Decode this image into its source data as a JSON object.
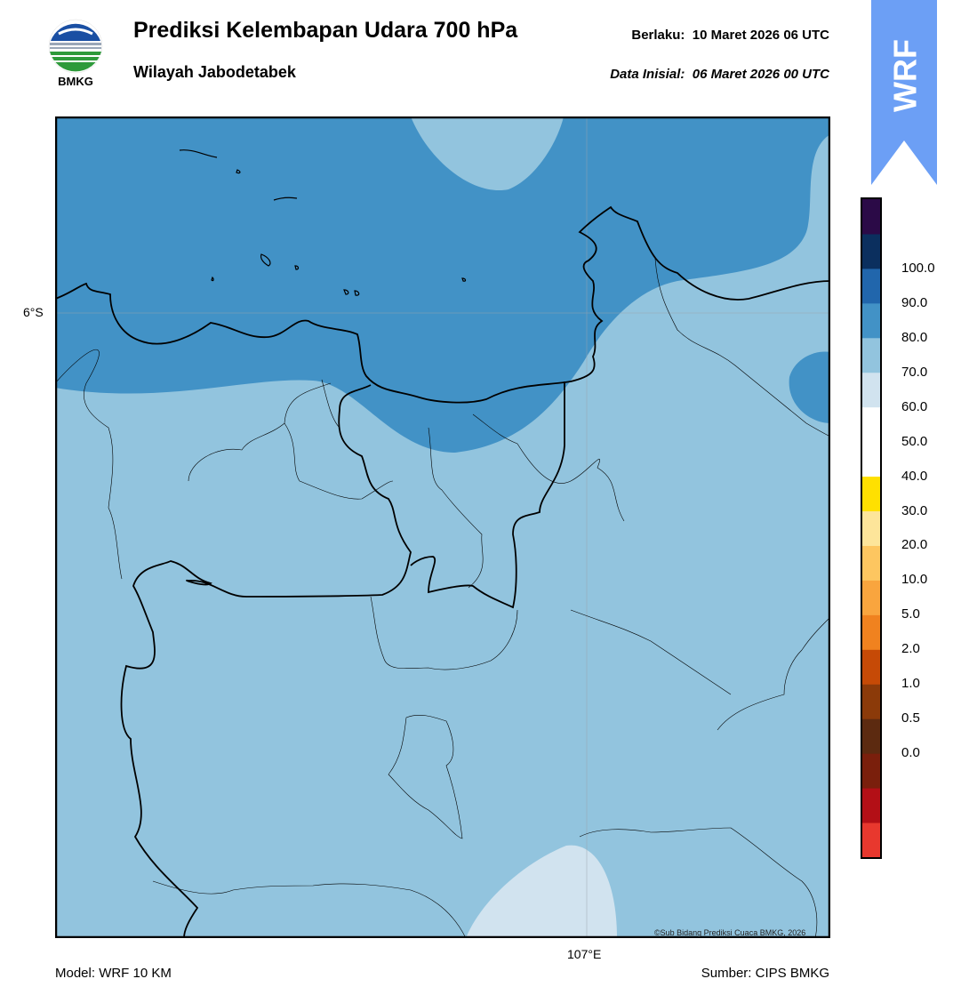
{
  "header": {
    "title": "Prediksi Kelembapan Udara 700 hPa",
    "subtitle": "Wilayah Jabodetabek",
    "valid_label": "Berlaku:",
    "valid_value": "10 Maret 2026 06 UTC",
    "init_label": "Data Inisial:",
    "init_value": "06 Maret 2026 00 UTC"
  },
  "logo": {
    "text": "BMKG",
    "icon": "bmkg-logo-icon"
  },
  "badge": {
    "text": "WRF",
    "color": "#6c9ff5"
  },
  "map": {
    "lat_label": "6°S",
    "lon_label": "107°E",
    "copyright": "©Sub Bidang Prediksi Cuaca BMKG, 2026",
    "colors": {
      "band_70_80": "#4292c6",
      "band_60_70": "#92c4de",
      "band_50_60": "#d1e3ef"
    }
  },
  "colorbar": {
    "labels": [
      "100.0",
      "90.0",
      "80.0",
      "70.0",
      "60.0",
      "50.0",
      "40.0",
      "30.0",
      "20.0",
      "10.0",
      "5.0",
      "2.0",
      "1.0",
      "0.5",
      "0.0"
    ],
    "colors": [
      "#e8382e",
      "#b30f16",
      "#7a1f0c",
      "#5c2a10",
      "#8b3a09",
      "#c64a06",
      "#f0821f",
      "#f9a53e",
      "#fdc660",
      "#fde59a",
      "#ffe000",
      "#ffffff",
      "#ffffff",
      "#d1e3ef",
      "#92c4de",
      "#4292c6",
      "#2166ac",
      "#0b2f5e",
      "#2b0a47"
    ]
  },
  "footer": {
    "model": "Model: WRF 10 KM",
    "source": "Sumber: CIPS BMKG"
  }
}
